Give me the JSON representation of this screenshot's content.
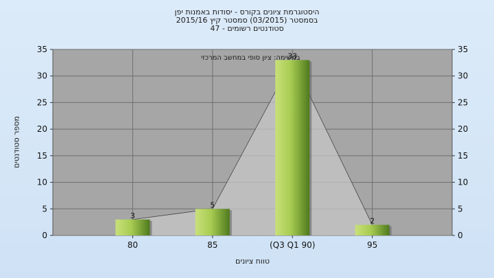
{
  "title_lines": [
    "היסטוגרמת ציונים בקורס - יסודות באמנות יפן",
    "בסמסטר  (03/2015)  סמסטר קיץ  2015/16",
    "סטודנטים רשומים - 47"
  ],
  "chart_data": {
    "type": "bar",
    "categories": [
      "80",
      "85",
      "(Q3 Q1 90)",
      "95"
    ],
    "values": [
      3,
      5,
      33,
      2
    ],
    "data_labels": [
      "3",
      "5",
      "33",
      "2"
    ],
    "title": "היסטוגרמת ציונים בקורס - יסודות באמנות יפן",
    "xlabel": "טווח ציונים",
    "ylabel": "מספר סטודנטים",
    "annotation": "במשימה: ציון סופי במחשב המרכזי",
    "ylim": [
      0,
      35
    ],
    "yticks": [
      "0",
      "5",
      "10",
      "15",
      "20",
      "25",
      "30",
      "35"
    ],
    "grid": true,
    "secondary_y_axis": true,
    "colors": {
      "plot_bg": "#a6a6a6",
      "bar_light": "#c8e07a",
      "bar_dark": "#4f7a1e",
      "area": "#c6c6c6"
    }
  }
}
